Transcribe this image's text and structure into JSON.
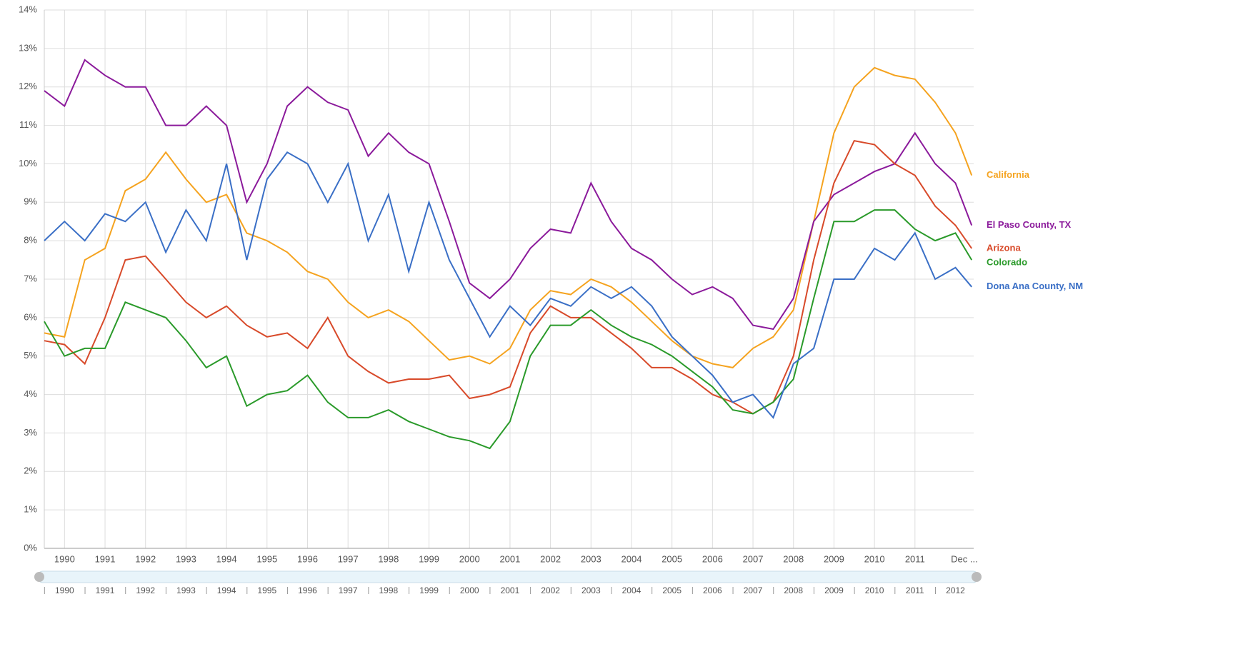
{
  "chart_data": {
    "type": "line",
    "x": [
      1989.5,
      1990,
      1990.5,
      1991,
      1991.5,
      1992,
      1992.5,
      1993,
      1993.5,
      1994,
      1994.5,
      1995,
      1995.5,
      1996,
      1996.5,
      1997,
      1997.5,
      1998,
      1998.5,
      1999,
      1999.5,
      2000,
      2000.5,
      2001,
      2001.5,
      2002,
      2002.5,
      2003,
      2003.5,
      2004,
      2004.5,
      2005,
      2005.5,
      2006,
      2006.5,
      2007,
      2007.5,
      2008,
      2008.5,
      2009,
      2009.5,
      2010,
      2010.5,
      2011,
      2011.5,
      2012,
      2012.4
    ],
    "xlim": [
      1989.5,
      2012.45
    ],
    "xticks": [
      1990,
      1991,
      1992,
      1993,
      1994,
      1995,
      1996,
      1997,
      1998,
      1999,
      2000,
      2001,
      2002,
      2003,
      2004,
      2005,
      2006,
      2007,
      2008,
      2009,
      2010,
      2011,
      {
        "value": 2012.22,
        "label": "Dec ..."
      }
    ],
    "ylim": [
      0,
      14
    ],
    "yticks": [
      {
        "value": 0,
        "label": "0%"
      },
      {
        "value": 1,
        "label": "1%"
      },
      {
        "value": 2,
        "label": "2%"
      },
      {
        "value": 3,
        "label": "3%"
      },
      {
        "value": 4,
        "label": "4%"
      },
      {
        "value": 5,
        "label": "5%"
      },
      {
        "value": 6,
        "label": "6%"
      },
      {
        "value": 7,
        "label": "7%"
      },
      {
        "value": 8,
        "label": "8%"
      },
      {
        "value": 9,
        "label": "9%"
      },
      {
        "value": 10,
        "label": "10%"
      },
      {
        "value": 11,
        "label": "11%"
      },
      {
        "value": 12,
        "label": "12%"
      },
      {
        "value": 13,
        "label": "13%"
      },
      {
        "value": 14,
        "label": "14%"
      }
    ],
    "grid": true,
    "navigator_ticks": [
      1990,
      1991,
      1992,
      1993,
      1994,
      1995,
      1996,
      1997,
      1998,
      1999,
      2000,
      2001,
      2002,
      2003,
      2004,
      2005,
      2006,
      2007,
      2008,
      2009,
      2010,
      2011,
      2012
    ],
    "series": [
      {
        "name": "California",
        "color": "#f5a31f",
        "values": [
          5.6,
          5.5,
          7.5,
          7.8,
          9.3,
          9.6,
          10.3,
          9.6,
          9.0,
          9.2,
          8.2,
          8.0,
          7.7,
          7.2,
          7.0,
          6.4,
          6.0,
          6.2,
          5.9,
          5.4,
          4.9,
          5.0,
          4.8,
          5.2,
          6.2,
          6.7,
          6.6,
          7.0,
          6.8,
          6.4,
          5.9,
          5.4,
          5.0,
          4.8,
          4.7,
          5.2,
          5.5,
          6.2,
          8.5,
          10.8,
          12.0,
          12.5,
          12.3,
          12.2,
          11.6,
          10.8,
          9.7
        ]
      },
      {
        "name": "El Paso County, TX",
        "color": "#8b1a9b",
        "values": [
          11.9,
          11.5,
          12.7,
          12.3,
          12.0,
          12.0,
          11.0,
          11.0,
          11.5,
          11.0,
          9.0,
          10.0,
          11.5,
          12.0,
          11.6,
          11.4,
          10.2,
          10.8,
          10.3,
          10.0,
          8.5,
          6.9,
          6.5,
          7.0,
          7.8,
          8.3,
          8.2,
          9.5,
          8.5,
          7.8,
          7.5,
          7.0,
          6.6,
          6.8,
          6.5,
          5.8,
          5.7,
          6.5,
          8.5,
          9.2,
          9.5,
          9.8,
          10.0,
          10.8,
          10.0,
          9.5,
          8.4
        ]
      },
      {
        "name": "Arizona",
        "color": "#d84a2a",
        "values": [
          5.4,
          5.3,
          4.8,
          6.0,
          7.5,
          7.6,
          7.0,
          6.4,
          6.0,
          6.3,
          5.8,
          5.5,
          5.6,
          5.2,
          6.0,
          5.0,
          4.6,
          4.3,
          4.4,
          4.4,
          4.5,
          3.9,
          4.0,
          4.2,
          5.6,
          6.3,
          6.0,
          6.0,
          5.6,
          5.2,
          4.7,
          4.7,
          4.4,
          4.0,
          3.8,
          3.5,
          3.8,
          5.0,
          7.5,
          9.5,
          10.6,
          10.5,
          10.0,
          9.7,
          8.9,
          8.4,
          7.8
        ]
      },
      {
        "name": "Colorado",
        "color": "#2a9a2a",
        "values": [
          5.9,
          5.0,
          5.2,
          5.2,
          6.4,
          6.2,
          6.0,
          5.4,
          4.7,
          5.0,
          3.7,
          4.0,
          4.1,
          4.5,
          3.8,
          3.4,
          3.4,
          3.6,
          3.3,
          3.1,
          2.9,
          2.8,
          2.6,
          3.3,
          5.0,
          5.8,
          5.8,
          6.2,
          5.8,
          5.5,
          5.3,
          5.0,
          4.6,
          4.2,
          3.6,
          3.5,
          3.8,
          4.4,
          6.5,
          8.5,
          8.5,
          8.8,
          8.8,
          8.3,
          8.0,
          8.2,
          7.5
        ]
      },
      {
        "name": "Dona Ana County, NM",
        "color": "#3a6fc6",
        "values": [
          8.0,
          8.5,
          8.0,
          8.7,
          8.5,
          9.0,
          7.7,
          8.8,
          8.0,
          10.0,
          7.5,
          9.6,
          10.3,
          10.0,
          9.0,
          10.0,
          8.0,
          9.2,
          7.2,
          9.0,
          7.5,
          6.5,
          5.5,
          6.3,
          5.8,
          6.5,
          6.3,
          6.8,
          6.5,
          6.8,
          6.3,
          5.5,
          5.0,
          4.5,
          3.8,
          4.0,
          3.4,
          4.8,
          5.2,
          7.0,
          7.0,
          7.8,
          7.5,
          8.2,
          7.0,
          7.3,
          6.8
        ]
      }
    ]
  }
}
